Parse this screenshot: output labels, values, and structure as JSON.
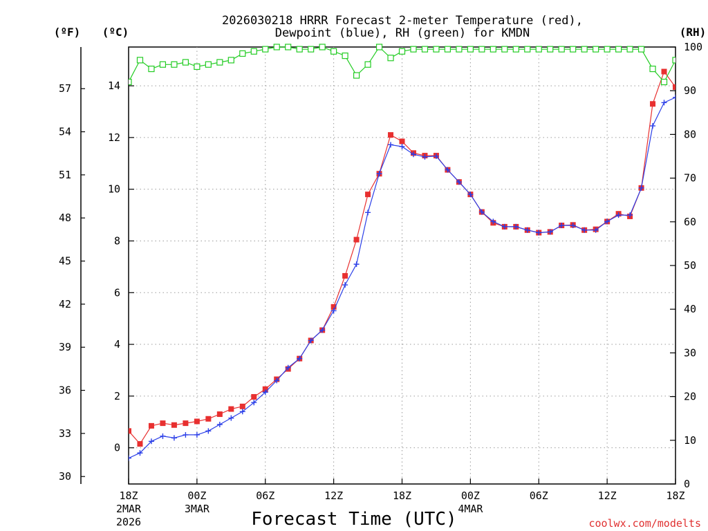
{
  "chart_data": {
    "type": "line",
    "title_line1": "2026030218 HRRR Forecast 2-meter Temperature (red),",
    "title_line2": "Dewpoint (blue), RH (green) for KMDN",
    "xlabel": "Forecast Time (UTC)",
    "credit": "coolwx.com/modelts",
    "units": {
      "f": "(ºF)",
      "c": "(ºC)",
      "rh": "(RH)"
    },
    "x_hours": [
      0,
      1,
      2,
      3,
      4,
      5,
      6,
      7,
      8,
      9,
      10,
      11,
      12,
      13,
      14,
      15,
      16,
      17,
      18,
      19,
      20,
      21,
      22,
      23,
      24,
      25,
      26,
      27,
      28,
      29,
      30,
      31,
      32,
      33,
      34,
      35,
      36,
      37,
      38,
      39,
      40,
      41,
      42,
      43,
      44,
      45,
      46,
      47,
      48
    ],
    "xlim": [
      0,
      48
    ],
    "ylim_c": [
      -1.4,
      15.5
    ],
    "ylim_rh": [
      0,
      100
    ],
    "x_ticks": [
      {
        "h": 0,
        "label": "18Z",
        "sub1": "2MAR",
        "sub2": "2026"
      },
      {
        "h": 6,
        "label": "00Z",
        "sub1": "3MAR",
        "sub2": ""
      },
      {
        "h": 12,
        "label": "06Z",
        "sub1": "",
        "sub2": ""
      },
      {
        "h": 18,
        "label": "12Z",
        "sub1": "",
        "sub2": ""
      },
      {
        "h": 24,
        "label": "18Z",
        "sub1": "",
        "sub2": ""
      },
      {
        "h": 30,
        "label": "00Z",
        "sub1": "4MAR",
        "sub2": ""
      },
      {
        "h": 36,
        "label": "06Z",
        "sub1": "",
        "sub2": ""
      },
      {
        "h": 42,
        "label": "12Z",
        "sub1": "",
        "sub2": ""
      },
      {
        "h": 48,
        "label": "18Z",
        "sub1": "",
        "sub2": ""
      }
    ],
    "c_ticks": [
      0,
      2,
      4,
      6,
      8,
      10,
      12,
      14
    ],
    "f_ticks": [
      30,
      33,
      36,
      39,
      42,
      45,
      48,
      51,
      54,
      57
    ],
    "rh_ticks": [
      0,
      10,
      20,
      30,
      40,
      50,
      60,
      70,
      80,
      90,
      100
    ],
    "series": [
      {
        "name": "Temperature",
        "unit": "C",
        "color": "#e83030",
        "marker": "filled-square",
        "values": [
          0.65,
          0.15,
          0.85,
          0.95,
          0.88,
          0.95,
          1.02,
          1.12,
          1.3,
          1.5,
          1.6,
          1.97,
          2.27,
          2.65,
          3.05,
          3.45,
          4.15,
          4.55,
          5.45,
          6.65,
          8.05,
          9.8,
          10.6,
          12.1,
          11.85,
          11.4,
          11.3,
          11.3,
          10.75,
          10.28,
          9.8,
          9.12,
          8.7,
          8.55,
          8.55,
          8.42,
          8.32,
          8.35,
          8.6,
          8.62,
          8.42,
          8.45,
          8.75,
          9.05,
          8.95,
          10.05,
          13.3,
          14.55,
          13.95
        ]
      },
      {
        "name": "Dewpoint",
        "unit": "C",
        "color": "#2b3fe8",
        "marker": "plus",
        "values": [
          -0.4,
          -0.2,
          0.25,
          0.45,
          0.38,
          0.5,
          0.5,
          0.65,
          0.9,
          1.15,
          1.4,
          1.75,
          2.15,
          2.6,
          3.1,
          3.45,
          4.15,
          4.55,
          5.3,
          6.3,
          7.1,
          9.1,
          10.6,
          11.72,
          11.65,
          11.35,
          11.25,
          11.28,
          10.75,
          10.28,
          9.8,
          9.12,
          8.75,
          8.55,
          8.55,
          8.42,
          8.32,
          8.35,
          8.6,
          8.6,
          8.42,
          8.42,
          8.75,
          9.0,
          9.0,
          10.05,
          12.45,
          13.35,
          13.55
        ]
      },
      {
        "name": "RH",
        "unit": "%",
        "color": "#22cc22",
        "marker": "open-square",
        "values": [
          92,
          97,
          95,
          96,
          96,
          96.5,
          95.5,
          96,
          96.5,
          97,
          98.5,
          99,
          99.5,
          100,
          100,
          99.5,
          99.5,
          100,
          99,
          98,
          93.5,
          96,
          100,
          97.5,
          99,
          99.5,
          99.5,
          99.5,
          99.5,
          99.5,
          99.5,
          99.5,
          99.5,
          99.5,
          99.5,
          99.5,
          99.5,
          99.5,
          99.5,
          99.5,
          99.5,
          99.5,
          99.5,
          99.5,
          99.5,
          99.5,
          95,
          92,
          97
        ]
      }
    ]
  }
}
